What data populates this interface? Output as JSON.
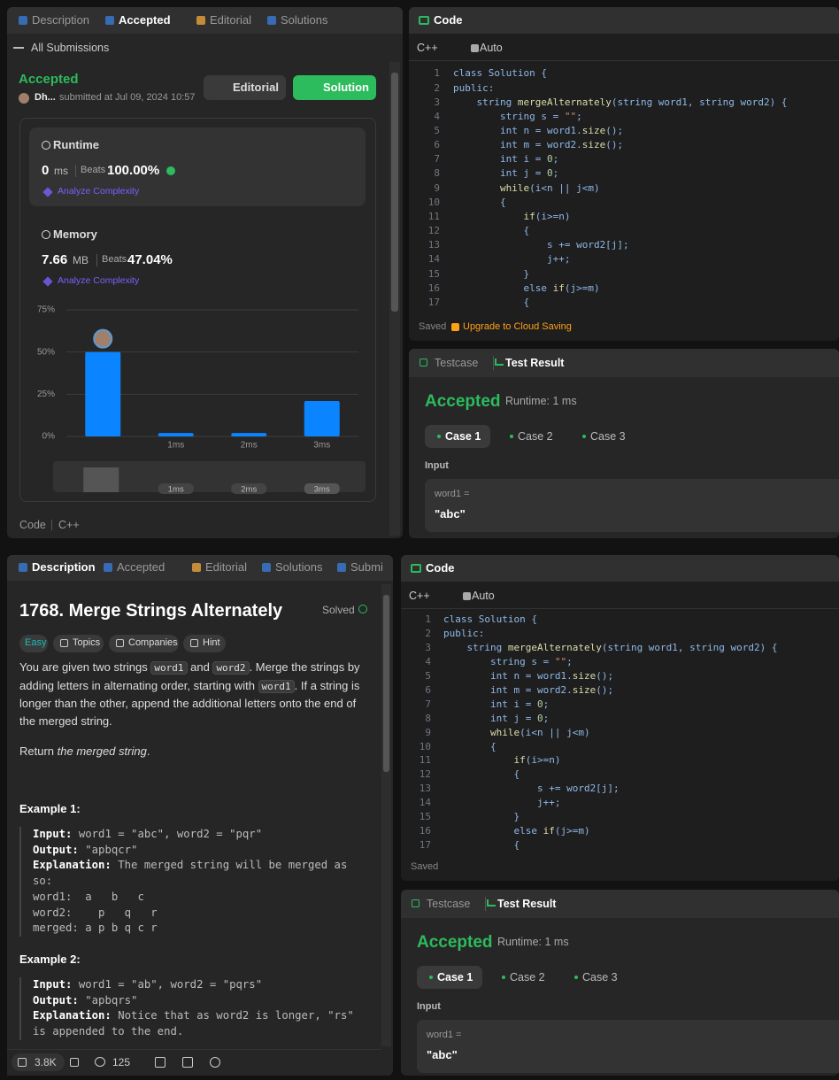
{
  "top": {
    "left": {
      "tabs": [
        "Description",
        "Accepted",
        "Editorial",
        "Solutions"
      ],
      "back": "All Submissions",
      "status": "Accepted",
      "user": "Dh...",
      "submitted": "submitted at Jul 09, 2024 10:57",
      "editorial_button": "Editorial",
      "solution_button": "Solution",
      "runtime": {
        "title": "Runtime",
        "value": 0,
        "unit": "ms",
        "beats_label": "Beats",
        "beats": "100.00%",
        "analyze": "Analyze Complexity"
      },
      "memory": {
        "title": "Memory",
        "value": 7.66,
        "unit": "MB",
        "beats_label": "Beats",
        "beats": "47.04%",
        "analyze": "Analyze Complexity"
      },
      "footer_code": "Code",
      "footer_lang": "C++"
    },
    "code": {
      "title": "Code",
      "lang": "C++",
      "mode": "Auto",
      "saved": "Saved",
      "upgrade": "Upgrade to Cloud Saving"
    },
    "result": {
      "tabs": [
        "Testcase",
        "Test Result"
      ],
      "status": "Accepted",
      "runtime": "Runtime: 1 ms",
      "cases": [
        "Case 1",
        "Case 2",
        "Case 3"
      ],
      "input_label": "Input",
      "var": "word1 =",
      "val": "\"abc\""
    }
  },
  "chart_data": {
    "type": "bar",
    "categories": [
      null,
      "1ms",
      "2ms",
      "3ms"
    ],
    "values": [
      50,
      2,
      2,
      21
    ],
    "color": "#0a84ff",
    "ylim": [
      0,
      75
    ],
    "yticks": [
      {
        "value": 0,
        "label": "0%"
      },
      {
        "value": 25,
        "label": "25%"
      },
      {
        "value": 50,
        "label": "50%"
      },
      {
        "value": 75,
        "label": "75%"
      }
    ],
    "grid": true
  },
  "line_numbers": [
    1,
    2,
    3,
    4,
    5,
    6,
    7,
    8,
    9,
    10,
    11,
    12,
    13,
    14,
    15,
    16,
    17
  ],
  "code_lines": [
    "class Solution {",
    "public:",
    "    string mergeAlternately(string word1, string word2) {",
    "        string s = \"\";",
    "        int n = word1.size();",
    "        int m = word2.size();",
    "        int i = 0;",
    "        int j = 0;",
    "        while(i<n || j<m)",
    "        {",
    "            if(i>=n)",
    "            {",
    "                s += word2[j];",
    "                j++;",
    "            }",
    "            else if(j>=m)",
    "            {"
  ],
  "bottom": {
    "left": {
      "tabs": [
        "Description",
        "Accepted",
        "Editorial",
        "Solutions",
        "Submi"
      ],
      "title": "1768. Merge Strings Alternately",
      "solved": "Solved",
      "tags": [
        "Easy",
        "Topics",
        "Companies",
        "Hint"
      ],
      "para": [
        "You are given two strings ",
        "word1",
        " and ",
        "word2",
        ". Merge the strings by adding letters in alternating order, starting with ",
        "word1",
        ". If a string is longer than the other, append the additional letters onto the end of the merged string."
      ],
      "return": [
        "Return ",
        "the merged string",
        "."
      ],
      "examples": [
        {
          "title": "Example 1:",
          "lines": [
            {
              "label": "Input:",
              "text": " word1 = \"abc\", word2 = \"pqr\""
            },
            {
              "label": "Output:",
              "text": " \"apbqcr\""
            },
            {
              "label": "Explanation:",
              "text": " The merged string will be merged as so:"
            },
            {
              "text": "word1:  a   b   c"
            },
            {
              "text": "word2:    p   q   r"
            },
            {
              "text": "merged: a p b q c r"
            }
          ]
        },
        {
          "title": "Example 2:",
          "lines": [
            {
              "label": "Input:",
              "text": " word1 = \"ab\", word2 = \"pqrs\""
            },
            {
              "label": "Output:",
              "text": " \"apbqrs\""
            },
            {
              "label": "Explanation:",
              "text": " Notice that as word2 is longer, \"rs\" is appended to the end."
            }
          ]
        }
      ],
      "likes": "3.8K",
      "comments": 125
    },
    "code": {
      "title": "Code",
      "lang": "C++",
      "mode": "Auto",
      "saved": "Saved"
    },
    "result": {
      "tabs": [
        "Testcase",
        "Test Result"
      ],
      "status": "Accepted",
      "runtime": "Runtime: 1 ms",
      "cases": [
        "Case 1",
        "Case 2",
        "Case 3"
      ],
      "input_label": "Input",
      "var": "word1 =",
      "val": "\"abc\""
    }
  }
}
